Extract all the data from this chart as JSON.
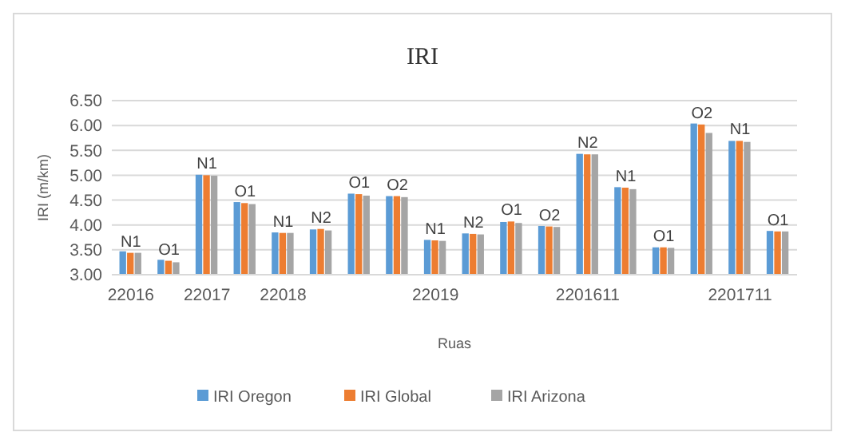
{
  "chart_data": {
    "type": "bar",
    "title": "IRI",
    "xlabel": "Ruas",
    "ylabel": "IRI (m/km)",
    "categories": [
      "22016",
      null,
      "22017",
      null,
      "22018",
      null,
      null,
      null,
      "22019",
      null,
      null,
      null,
      "2201611",
      null,
      null,
      null,
      "2201711",
      null
    ],
    "series": [
      {
        "name": "IRI Oregon",
        "color": "#5b9bd5",
        "values": [
          3.47,
          3.3,
          5.01,
          4.46,
          3.85,
          3.91,
          4.63,
          4.58,
          3.7,
          3.83,
          4.06,
          3.98,
          5.43,
          4.76,
          3.55,
          6.04,
          5.69,
          3.88
        ]
      },
      {
        "name": "IRI Global",
        "color": "#ed7d31",
        "values": [
          3.44,
          3.28,
          5.0,
          4.44,
          3.84,
          3.92,
          4.62,
          4.58,
          3.69,
          3.82,
          4.07,
          3.97,
          5.42,
          4.75,
          3.55,
          6.02,
          5.69,
          3.87
        ],
        "value_labels": [
          "N1",
          "O1",
          "N1",
          "O1",
          "N1",
          "N2",
          "O1",
          "O2",
          "N1",
          "N2",
          "O1",
          "O2",
          "N2",
          "N1",
          "O1",
          "O2",
          "N1",
          "O1"
        ]
      },
      {
        "name": "IRI Arizona",
        "color": "#a5a5a5",
        "values": [
          3.44,
          3.25,
          4.99,
          4.42,
          3.84,
          3.89,
          4.59,
          4.56,
          3.68,
          3.81,
          4.04,
          3.96,
          5.42,
          4.72,
          3.54,
          5.85,
          5.67,
          3.87
        ]
      }
    ],
    "ylim": [
      3,
      6.5
    ],
    "yticks": [
      {
        "value": 3,
        "label": "3.00"
      },
      {
        "value": 3.5,
        "label": "3.50"
      },
      {
        "value": 4,
        "label": "4.00"
      },
      {
        "value": 4.5,
        "label": "4.50"
      },
      {
        "value": 5,
        "label": "5.00"
      },
      {
        "value": 5.5,
        "label": "5.50"
      },
      {
        "value": 6,
        "label": "6.00"
      },
      {
        "value": 6.5,
        "label": "6.50"
      }
    ],
    "grid": "y",
    "legend": "bottom"
  }
}
